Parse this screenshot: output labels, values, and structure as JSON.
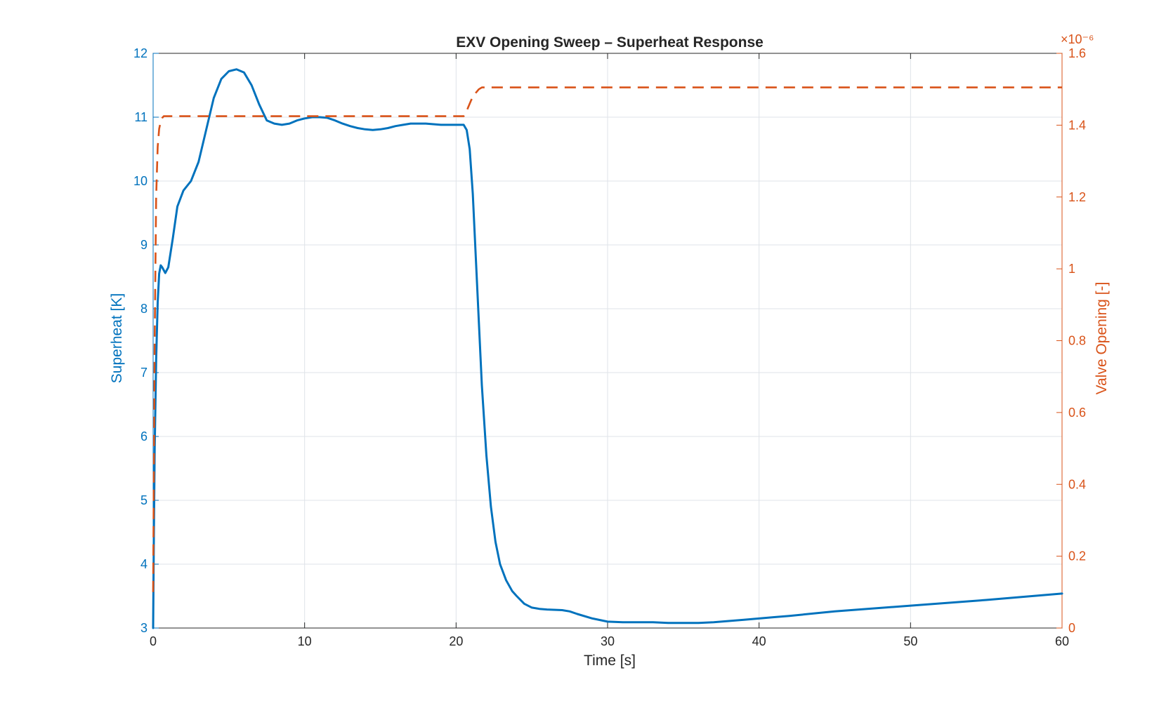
{
  "chart_data": {
    "type": "line",
    "title": "EXV Opening Sweep – Superheat Response",
    "xlabel": "Time [s]",
    "ylabel_left": "Superheat [K]",
    "ylabel_right": "Valve Opening [-]",
    "right_exponent_label": "×10⁻⁶",
    "xlim": [
      0,
      60
    ],
    "ylim_left": [
      3,
      12
    ],
    "ylim_right": [
      0,
      1.6
    ],
    "right_scale": 1e-06,
    "x_ticks": [
      "0",
      "10",
      "20",
      "30",
      "40",
      "50",
      "60"
    ],
    "y_left_ticks": [
      "3",
      "4",
      "5",
      "6",
      "7",
      "8",
      "9",
      "10",
      "11",
      "12"
    ],
    "y_right_ticks": [
      "0",
      "0.2",
      "0.4",
      "0.6",
      "0.8",
      "1",
      "1.2",
      "1.4",
      "1.6"
    ],
    "grid": true,
    "colors": {
      "superheat": "#0072BD",
      "valve": "#D95319",
      "axis_text": "#262626",
      "grid": "#dfe3e8"
    },
    "series": [
      {
        "axis": "left",
        "style": "solid",
        "x": [
          0,
          0.05,
          0.1,
          0.2,
          0.3,
          0.4,
          0.5,
          0.6,
          0.8,
          1.0,
          1.3,
          1.6,
          2.0,
          2.5,
          3.0,
          3.5,
          4.0,
          4.5,
          5.0,
          5.5,
          6.0,
          6.5,
          7.0,
          7.5,
          8.0,
          8.5,
          9.0,
          9.5,
          10.0,
          10.5,
          11.0,
          11.5,
          12.0,
          12.5,
          13.0,
          13.5,
          14.0,
          14.5,
          15.0,
          15.5,
          16.0,
          16.5,
          17.0,
          17.5,
          18.0,
          18.5,
          19.0,
          19.5,
          20.0,
          20.3,
          20.5,
          20.7,
          20.9,
          21.1,
          21.3,
          21.5,
          21.7,
          22.0,
          22.3,
          22.6,
          22.9,
          23.3,
          23.7,
          24.0,
          24.5,
          25.0,
          25.5,
          26.0,
          27.0,
          27.5,
          28.0,
          29.0,
          30.0,
          31.0,
          32.0,
          33.0,
          34.0,
          35.0,
          36.0,
          37.0,
          38.0,
          39.0,
          40.0,
          41.0,
          42.0,
          45.0,
          50.0,
          55.0,
          60.0
        ],
        "y": [
          3.0,
          4.5,
          5.8,
          7.2,
          8.1,
          8.55,
          8.68,
          8.65,
          8.56,
          8.65,
          9.1,
          9.6,
          9.85,
          10.0,
          10.3,
          10.8,
          11.3,
          11.6,
          11.72,
          11.75,
          11.7,
          11.5,
          11.2,
          10.95,
          10.9,
          10.88,
          10.9,
          10.95,
          10.98,
          11.0,
          11.0,
          10.99,
          10.95,
          10.9,
          10.86,
          10.83,
          10.81,
          10.8,
          10.81,
          10.83,
          10.86,
          10.88,
          10.9,
          10.9,
          10.9,
          10.89,
          10.88,
          10.88,
          10.88,
          10.88,
          10.88,
          10.8,
          10.5,
          9.8,
          8.8,
          7.8,
          6.8,
          5.7,
          4.9,
          4.35,
          4.0,
          3.75,
          3.58,
          3.5,
          3.38,
          3.32,
          3.3,
          3.29,
          3.28,
          3.26,
          3.22,
          3.15,
          3.1,
          3.09,
          3.09,
          3.09,
          3.08,
          3.08,
          3.08,
          3.09,
          3.11,
          3.13,
          3.15,
          3.17,
          3.19,
          3.26,
          3.35,
          3.44,
          3.54
        ]
      },
      {
        "axis": "right",
        "style": "dashed",
        "x": [
          0,
          0.1,
          0.2,
          0.3,
          0.4,
          0.5,
          0.6,
          0.7,
          1.0,
          5.0,
          10.0,
          15.0,
          20.5,
          20.7,
          21.0,
          21.3,
          21.5,
          21.7,
          22.0,
          30.0,
          40.0,
          50.0,
          60.0
        ],
        "y": [
          0.1,
          0.8,
          1.2,
          1.34,
          1.39,
          1.41,
          1.42,
          1.425,
          1.425,
          1.425,
          1.425,
          1.425,
          1.425,
          1.44,
          1.47,
          1.49,
          1.5,
          1.505,
          1.505,
          1.505,
          1.505,
          1.505,
          1.505
        ]
      }
    ]
  }
}
